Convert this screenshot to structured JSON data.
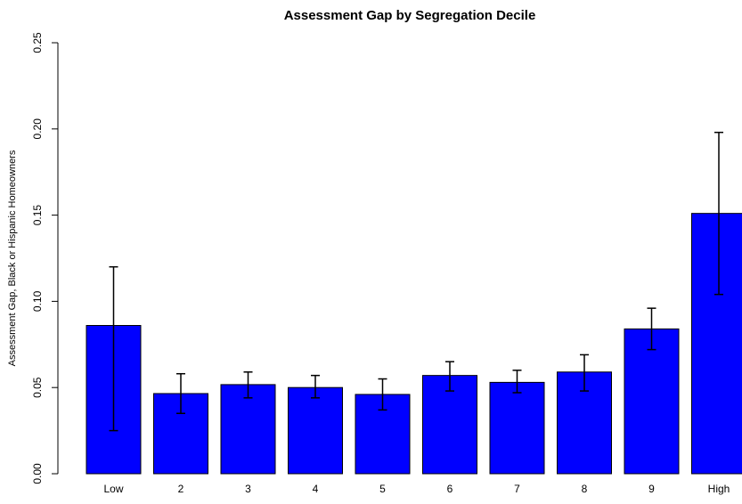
{
  "chart_data": {
    "type": "bar",
    "title": "Assessment Gap by Segregation Decile",
    "y_label": "Assessment Gap, Black or Hispanic Homeowners",
    "categories": [
      "Low",
      "2",
      "3",
      "4",
      "5",
      "6",
      "7",
      "8",
      "9",
      "High"
    ],
    "values": [
      0.086,
      0.0465,
      0.0517,
      0.05,
      0.046,
      0.057,
      0.053,
      0.059,
      0.084,
      0.151
    ],
    "error_lower": [
      0.025,
      0.035,
      0.044,
      0.044,
      0.037,
      0.048,
      0.047,
      0.048,
      0.072,
      0.104
    ],
    "error_upper": [
      0.12,
      0.058,
      0.059,
      0.057,
      0.055,
      0.065,
      0.06,
      0.069,
      0.096,
      0.198
    ],
    "color": "#0000ff",
    "ylim": [
      0,
      0.25
    ],
    "yticks": [
      {
        "value": 0,
        "label": "0.00"
      },
      {
        "value": 0.05,
        "label": "0.05"
      },
      {
        "value": 0.1,
        "label": "0.10"
      },
      {
        "value": 0.15,
        "label": "0.15"
      },
      {
        "value": 0.2,
        "label": "0.20"
      },
      {
        "value": 0.25,
        "label": "0.25"
      }
    ]
  }
}
